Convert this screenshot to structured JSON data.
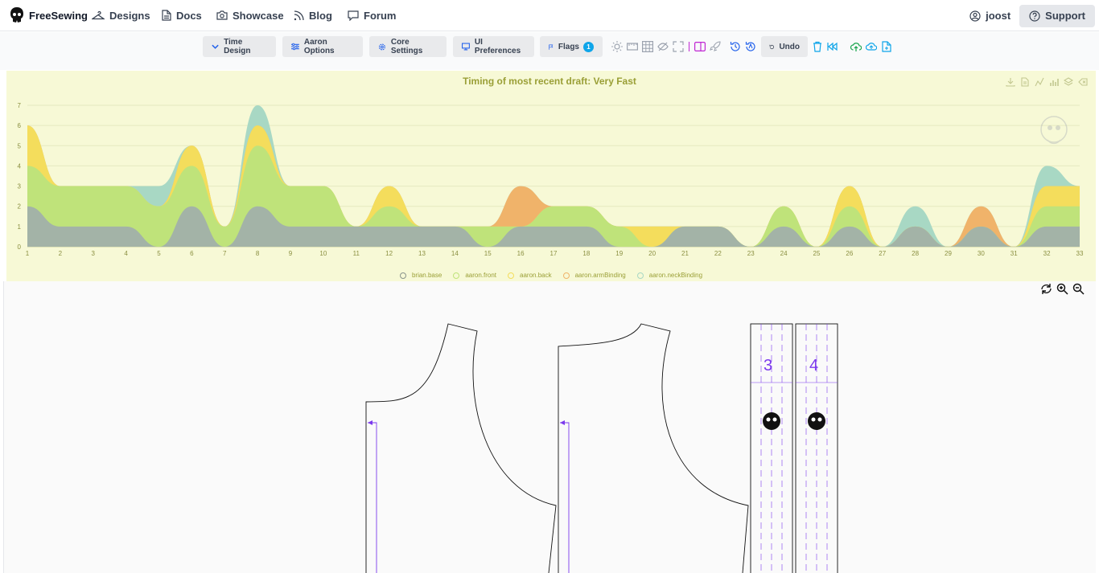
{
  "nav": {
    "brand": "FreeSewing",
    "items": [
      {
        "label": "Designs",
        "icon": "hanger-icon"
      },
      {
        "label": "Docs",
        "icon": "document-icon"
      },
      {
        "label": "Showcase",
        "icon": "camera-icon"
      },
      {
        "label": "Blog",
        "icon": "rss-icon"
      },
      {
        "label": "Forum",
        "icon": "chat-icon"
      }
    ],
    "user": "joost",
    "support": "Support"
  },
  "toolbar": {
    "time_design": "Time Design",
    "aaron_options": "Aaron Options",
    "core_settings": "Core Settings",
    "ui_preferences": "UI Preferences",
    "flags": "Flags",
    "flags_count": "1",
    "undo": "Undo"
  },
  "chart_data": {
    "type": "area",
    "stacked": true,
    "title": "Timing of most recent draft: Very Fast",
    "xlabel": "",
    "ylabel": "",
    "x": [
      1,
      2,
      3,
      4,
      5,
      6,
      7,
      8,
      9,
      10,
      11,
      12,
      13,
      14,
      15,
      16,
      17,
      18,
      19,
      20,
      21,
      22,
      23,
      24,
      25,
      26,
      27,
      28,
      29,
      30,
      31,
      32,
      33
    ],
    "ylim": [
      0,
      7
    ],
    "yticks": [
      0,
      1,
      2,
      3,
      4,
      5,
      6,
      7
    ],
    "series": [
      {
        "name": "brian.base",
        "color": "#a3b3a7",
        "values": [
          2,
          1,
          1,
          1,
          0,
          2,
          0,
          2,
          1,
          1,
          1,
          1,
          1,
          1,
          0,
          1,
          1,
          1,
          0,
          0,
          1,
          1,
          0,
          1,
          0,
          1,
          0,
          1,
          0,
          1,
          0,
          1,
          1
        ]
      },
      {
        "name": "aaron.front",
        "color": "#bfe37a",
        "values": [
          2,
          2,
          2,
          2,
          2,
          2,
          1,
          3,
          2,
          2,
          0,
          1,
          0,
          0,
          1,
          0,
          1,
          1,
          1,
          0,
          0,
          0,
          0,
          1,
          0,
          1,
          0,
          0,
          0,
          0,
          0,
          1,
          1
        ]
      },
      {
        "name": "aaron.back",
        "color": "#f4dd5c",
        "values": [
          2,
          0,
          0,
          0,
          0,
          1,
          0,
          1,
          0,
          0,
          0,
          1,
          0,
          0,
          0,
          0,
          0,
          0,
          0,
          1,
          0,
          0,
          0,
          0,
          0,
          1,
          0,
          0,
          0,
          0,
          0,
          1,
          1
        ]
      },
      {
        "name": "aaron.armBinding",
        "color": "#f0b36a",
        "values": [
          0,
          0,
          0,
          0,
          0,
          0,
          0,
          0,
          0,
          0,
          0,
          0,
          0,
          0,
          0,
          2,
          0,
          0,
          0,
          0,
          0,
          0,
          0,
          0,
          0,
          0,
          0,
          0,
          0,
          1,
          0,
          0,
          0
        ]
      },
      {
        "name": "aaron.neckBinding",
        "color": "#a8d8c4",
        "values": [
          0,
          0,
          0,
          0,
          1,
          0,
          0,
          1,
          0,
          0,
          0,
          0,
          0,
          0,
          0,
          0,
          0,
          0,
          0,
          0,
          0,
          0,
          0,
          0,
          0,
          0,
          0,
          1,
          0,
          0,
          0,
          1,
          0
        ]
      }
    ]
  },
  "pattern": {
    "binding_labels": [
      "3",
      "4"
    ]
  }
}
